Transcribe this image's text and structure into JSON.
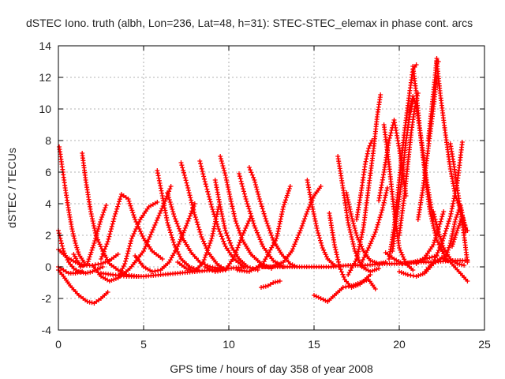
{
  "chart_data": {
    "type": "scatter",
    "title": "dSTEC Iono. truth (albh, Lon=236, Lat=48, h=31): STEC-STEC_elemax in phase cont. arcs",
    "xlabel": "GPS time / hours of day 358 of year 2008",
    "ylabel": "dSTEC  / TECUs",
    "xlim": [
      0,
      25
    ],
    "ylim": [
      -4,
      14
    ],
    "x_ticks": [
      0,
      5,
      10,
      15,
      20,
      25
    ],
    "y_ticks": [
      -4,
      -2,
      0,
      2,
      4,
      6,
      8,
      10,
      12,
      14
    ],
    "x_tick_labels": [
      "0",
      "5",
      "10",
      "15",
      "20",
      "25"
    ],
    "y_tick_labels": [
      "-4",
      "-2",
      "0",
      "2",
      "4",
      "6",
      "8",
      "10",
      "12",
      "14"
    ],
    "grid": true,
    "marker": "+",
    "color": "#ff0000",
    "series": [
      {
        "x": [
          0.0,
          0.3,
          0.6,
          1.0,
          1.4
        ],
        "y": [
          0.0,
          -0.2,
          -0.4,
          -0.4,
          -0.3
        ]
      },
      {
        "x": [
          0.0,
          0.3,
          0.6,
          0.9,
          1.2,
          1.6,
          2.0,
          2.6
        ],
        "y": [
          2.3,
          1.0,
          0.3,
          -0.1,
          -0.3,
          -0.4,
          -0.3,
          0.0
        ]
      },
      {
        "x": [
          0.0,
          0.3,
          0.7,
          1.2,
          1.7,
          2.1,
          2.5,
          2.9
        ],
        "y": [
          -0.2,
          -0.6,
          -1.2,
          -1.8,
          -2.2,
          -2.3,
          -2.0,
          -1.6
        ]
      },
      {
        "x": [
          0.05,
          0.2,
          0.4,
          0.6,
          0.8,
          1.0,
          1.2,
          1.5
        ],
        "y": [
          7.6,
          6.5,
          5.0,
          3.6,
          2.4,
          1.5,
          0.8,
          0.3
        ]
      },
      {
        "x": [
          0.0,
          0.5,
          1.0,
          1.5,
          2.0,
          2.5,
          3.0,
          3.5
        ],
        "y": [
          1.1,
          0.6,
          0.3,
          0.1,
          0.1,
          0.2,
          0.4,
          0.8
        ]
      },
      {
        "x": [
          1.4,
          1.6,
          1.9,
          2.2,
          2.6,
          3.0,
          3.5,
          4.0,
          4.6
        ],
        "y": [
          7.2,
          5.5,
          3.5,
          2.0,
          1.0,
          0.2,
          -0.2,
          -0.5,
          -0.6
        ]
      },
      {
        "x": [
          0.9,
          1.3,
          1.7,
          2.1,
          2.5,
          2.8
        ],
        "y": [
          0.8,
          0.0,
          0.2,
          1.5,
          3.0,
          3.9
        ]
      },
      {
        "x": [
          2.0,
          2.5,
          3.0,
          3.5,
          3.9,
          4.3,
          4.8,
          5.3,
          5.8
        ],
        "y": [
          0.1,
          -0.6,
          -0.9,
          -0.7,
          0.2,
          1.8,
          3.0,
          3.8,
          4.1
        ]
      },
      {
        "x": [
          2.5,
          2.9,
          3.3,
          3.7,
          4.1,
          4.5,
          5.0,
          5.5,
          6.1
        ],
        "y": [
          0.5,
          1.6,
          3.2,
          4.6,
          4.3,
          3.0,
          1.8,
          1.0,
          0.5
        ]
      },
      {
        "x": [
          2.5,
          3.2,
          4.0,
          5.0,
          6.0,
          7.0,
          8.0,
          9.0,
          10.0,
          11.0
        ],
        "y": [
          -0.4,
          -0.5,
          -0.6,
          -0.6,
          -0.5,
          -0.4,
          -0.3,
          -0.2,
          -0.1,
          0.0
        ]
      },
      {
        "x": [
          4.5,
          5.0,
          5.5,
          6.0,
          6.5,
          7.0,
          7.5,
          8.0
        ],
        "y": [
          0.7,
          0.0,
          -0.3,
          -0.2,
          0.3,
          1.3,
          2.6,
          4.0
        ]
      },
      {
        "x": [
          5.8,
          6.1,
          6.4,
          6.8,
          7.2,
          7.7,
          8.2
        ],
        "y": [
          6.1,
          4.5,
          2.8,
          1.4,
          0.5,
          0.0,
          -0.2
        ]
      },
      {
        "x": [
          3.5,
          4.2,
          5.0,
          5.6,
          6.2,
          6.6
        ],
        "y": [
          -0.7,
          -0.1,
          1.0,
          2.5,
          4.0,
          5.1
        ]
      },
      {
        "x": [
          6.4,
          6.8,
          7.3,
          7.8,
          8.3,
          8.9,
          9.5
        ],
        "y": [
          4.7,
          3.2,
          1.8,
          0.9,
          0.3,
          0.0,
          -0.1
        ]
      },
      {
        "x": [
          7.2,
          7.6,
          8.0,
          8.4,
          8.8,
          9.3,
          9.8
        ],
        "y": [
          6.6,
          5.0,
          3.3,
          1.9,
          0.9,
          0.2,
          -0.2
        ]
      },
      {
        "x": [
          7.0,
          7.5,
          8.0,
          8.5,
          9.0,
          9.4
        ],
        "y": [
          0.3,
          -0.1,
          -0.3,
          0.3,
          1.8,
          3.8
        ]
      },
      {
        "x": [
          8.3,
          8.6,
          9.0,
          9.4,
          9.8,
          10.3,
          10.9
        ],
        "y": [
          6.7,
          5.4,
          3.8,
          2.4,
          1.3,
          0.5,
          0.0
        ]
      },
      {
        "x": [
          9.2,
          9.5,
          9.8,
          10.2,
          10.6,
          11.1,
          11.7
        ],
        "y": [
          5.5,
          3.8,
          2.3,
          1.2,
          0.5,
          0.0,
          -0.2
        ]
      },
      {
        "x": [
          9.5,
          9.8,
          10.1,
          10.4,
          10.8,
          11.3,
          11.9,
          12.5
        ],
        "y": [
          7.0,
          5.8,
          4.3,
          2.9,
          1.7,
          0.8,
          0.2,
          -0.1
        ]
      },
      {
        "x": [
          8.6,
          9.2,
          9.8,
          10.3,
          10.8,
          11.3
        ],
        "y": [
          0.0,
          -0.3,
          -0.2,
          0.6,
          2.0,
          3.2
        ]
      },
      {
        "x": [
          10.6,
          11.0,
          11.5,
          12.0,
          12.6,
          13.2
        ],
        "y": [
          5.9,
          4.3,
          2.6,
          1.3,
          0.4,
          0.0
        ]
      },
      {
        "x": [
          11.2,
          11.5,
          11.8,
          12.2,
          12.6,
          13.1,
          13.6,
          14.0
        ],
        "y": [
          6.3,
          5.5,
          4.3,
          2.9,
          1.7,
          0.8,
          0.2,
          0.0
        ]
      },
      {
        "x": [
          10.5,
          11.2,
          12.0,
          12.8,
          13.2,
          13.6
        ],
        "y": [
          -0.2,
          -0.3,
          0.2,
          1.8,
          3.8,
          5.1
        ]
      },
      {
        "x": [
          11.8,
          12.5,
          13.2,
          13.7,
          14.2,
          14.6,
          15.0,
          15.4
        ],
        "y": [
          0.0,
          0.0,
          0.3,
          1.0,
          2.3,
          3.5,
          4.5,
          5.1
        ]
      },
      {
        "x": [
          14.6,
          14.9,
          15.2,
          15.5,
          15.8,
          16.2
        ],
        "y": [
          5.5,
          3.8,
          2.3,
          1.2,
          0.5,
          0.1
        ]
      },
      {
        "x": [
          12.0,
          13.0,
          14.0,
          15.0,
          16.0,
          17.0,
          18.0,
          19.0,
          20.0,
          21.0,
          22.0,
          23.0,
          24.0
        ],
        "y": [
          0.0,
          0.0,
          0.0,
          0.0,
          0.0,
          0.1,
          0.1,
          0.2,
          0.2,
          0.3,
          0.3,
          0.4,
          0.4
        ]
      },
      {
        "x": [
          11.9,
          12.3,
          12.6,
          13.0
        ],
        "y": [
          -1.3,
          -1.2,
          -1.0,
          -0.9
        ]
      },
      {
        "x": [
          15.0,
          15.4,
          15.8,
          16.2,
          16.7,
          17.2,
          17.7,
          18.2,
          18.6
        ],
        "y": [
          -1.8,
          -2.0,
          -2.2,
          -1.8,
          -1.3,
          -1.2,
          -1.0,
          -0.8,
          -1.4
        ]
      },
      {
        "x": [
          15.9,
          16.2,
          16.5,
          16.8,
          17.2,
          17.7,
          18.3
        ],
        "y": [
          3.4,
          1.4,
          0.0,
          -0.8,
          -1.3,
          -1.1,
          -0.5
        ]
      },
      {
        "x": [
          16.4,
          16.7,
          17.0,
          17.4,
          17.8,
          18.3,
          18.8
        ],
        "y": [
          7.0,
          5.0,
          2.8,
          1.0,
          0.0,
          -0.3,
          -0.1
        ]
      },
      {
        "x": [
          16.9,
          17.2,
          17.5,
          17.9,
          18.3,
          18.8,
          19.2
        ],
        "y": [
          4.7,
          3.2,
          2.0,
          1.0,
          0.4,
          0.2,
          0.3
        ]
      },
      {
        "x": [
          17.0,
          17.5,
          17.9,
          18.2,
          18.5,
          18.7,
          18.9
        ],
        "y": [
          -0.5,
          0.5,
          2.5,
          5.0,
          7.5,
          9.5,
          10.9
        ]
      },
      {
        "x": [
          17.5,
          17.8,
          18.0,
          18.2,
          18.4
        ],
        "y": [
          3.0,
          5.0,
          6.5,
          7.5,
          8.0
        ]
      },
      {
        "x": [
          17.8,
          18.2,
          18.6,
          19.0,
          19.3
        ],
        "y": [
          0.3,
          1.2,
          2.2,
          3.6,
          5.0
        ]
      },
      {
        "x": [
          19.1,
          19.4,
          19.7,
          20.0,
          20.4,
          20.8
        ],
        "y": [
          9.0,
          6.5,
          3.5,
          1.2,
          0.2,
          -0.2
        ]
      },
      {
        "x": [
          18.8,
          19.1,
          19.4,
          19.7,
          20.0,
          20.4
        ],
        "y": [
          4.2,
          6.0,
          8.0,
          9.3,
          7.5,
          4.5
        ]
      },
      {
        "x": [
          19.2,
          19.7,
          20.2,
          20.8,
          21.5,
          22.2
        ],
        "y": [
          0.9,
          0.5,
          0.2,
          0.3,
          0.5,
          0.7
        ]
      },
      {
        "x": [
          19.4,
          19.7,
          20.0,
          20.3,
          20.6,
          20.8,
          21.0
        ],
        "y": [
          0.5,
          2.5,
          5.5,
          8.5,
          11.0,
          12.5,
          12.8
        ]
      },
      {
        "x": [
          19.6,
          19.9,
          20.2,
          20.4,
          20.6,
          20.8
        ],
        "y": [
          1.0,
          3.5,
          6.0,
          8.0,
          9.5,
          10.5
        ]
      },
      {
        "x": [
          20.0,
          20.3,
          20.5,
          20.7,
          20.9,
          21.1
        ],
        "y": [
          2.0,
          4.5,
          6.5,
          8.5,
          10.0,
          11.0
        ]
      },
      {
        "x": [
          20.8,
          21.0,
          21.2,
          21.5,
          21.8,
          22.2,
          22.8
        ],
        "y": [
          12.7,
          11.0,
          8.8,
          6.0,
          3.5,
          1.7,
          0.4
        ]
      },
      {
        "x": [
          20.6,
          20.8,
          21.0,
          21.3,
          21.6,
          22.0
        ],
        "y": [
          9.8,
          10.8,
          10.2,
          8.0,
          5.5,
          3.0
        ]
      },
      {
        "x": [
          21.1,
          21.4,
          21.7,
          22.0,
          22.2
        ],
        "y": [
          3.0,
          5.0,
          7.5,
          10.0,
          12.0
        ]
      },
      {
        "x": [
          21.7,
          21.9,
          22.1,
          22.2,
          22.3
        ],
        "y": [
          8.0,
          10.0,
          12.0,
          13.2,
          13.0
        ]
      },
      {
        "x": [
          22.2,
          22.4,
          22.7,
          23.0,
          23.3,
          23.6
        ],
        "y": [
          13.0,
          11.0,
          8.5,
          6.2,
          4.5,
          3.6
        ]
      },
      {
        "x": [
          21.5,
          22.0,
          22.5,
          23.0,
          23.4,
          23.7
        ],
        "y": [
          -0.3,
          0.3,
          1.5,
          3.2,
          5.3,
          7.9
        ]
      },
      {
        "x": [
          23.0,
          23.2,
          23.4,
          23.6,
          23.8,
          24.0
        ],
        "y": [
          7.8,
          6.5,
          5.0,
          3.5,
          2.0,
          0.3
        ]
      },
      {
        "x": [
          22.7,
          23.0,
          23.3,
          23.6,
          23.9
        ],
        "y": [
          0.5,
          1.5,
          3.0,
          3.9,
          2.2
        ]
      },
      {
        "x": [
          20.0,
          20.5,
          21.0,
          21.5,
          22.0,
          22.5,
          23.0,
          23.5,
          24.0
        ],
        "y": [
          -0.3,
          -0.5,
          -0.6,
          -0.4,
          0.2,
          0.6,
          0.3,
          -0.3,
          -0.9
        ]
      },
      {
        "x": [
          22.0,
          22.3,
          22.6,
          23.0,
          23.4,
          23.8
        ],
        "y": [
          3.5,
          2.2,
          1.2,
          0.5,
          0.2,
          0.1
        ]
      },
      {
        "x": [
          21.0,
          21.5,
          22.0,
          22.3,
          22.6
        ],
        "y": [
          0.2,
          0.6,
          1.4,
          2.4,
          3.5
        ]
      },
      {
        "x": [
          23.1,
          23.4,
          23.7,
          23.9,
          24.0
        ],
        "y": [
          1.3,
          2.3,
          3.2,
          2.5,
          2.3
        ]
      }
    ]
  }
}
